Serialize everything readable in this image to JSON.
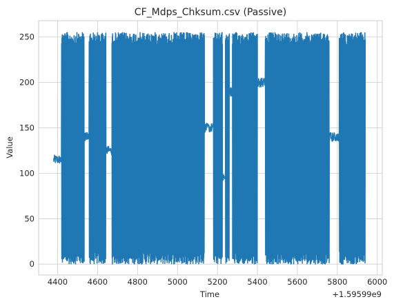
{
  "chart_data": {
    "type": "line",
    "title": "CF_Mdps_Chksum.csv (Passive)",
    "xlabel": "Time",
    "ylabel": "Value",
    "x_offset_label": "+1.59599e9",
    "xlim": [
      4305,
      6025
    ],
    "ylim": [
      -12,
      268
    ],
    "x_ticks": [
      4400,
      4600,
      4800,
      5000,
      5200,
      5400,
      5600,
      5800,
      6000
    ],
    "y_ticks": [
      0,
      50,
      100,
      150,
      200,
      250
    ],
    "grid": true,
    "series": [
      {
        "color": "#1f77b4",
        "segments": [
          {
            "x_start": 4380,
            "x_end": 4420,
            "pattern": "steady",
            "value": 115
          },
          {
            "x_start": 4420,
            "x_end": 4533,
            "pattern": "dense",
            "min": 0,
            "max": 255
          },
          {
            "x_start": 4533,
            "x_end": 4558,
            "pattern": "steady",
            "value": 140
          },
          {
            "x_start": 4558,
            "x_end": 4642,
            "pattern": "dense",
            "min": 0,
            "max": 255
          },
          {
            "x_start": 4642,
            "x_end": 4672,
            "pattern": "steady",
            "value": 125
          },
          {
            "x_start": 4672,
            "x_end": 5135,
            "pattern": "dense",
            "min": 0,
            "max": 255
          },
          {
            "x_start": 5135,
            "x_end": 5180,
            "pattern": "steady",
            "value": 150
          },
          {
            "x_start": 5180,
            "x_end": 5225,
            "pattern": "dense",
            "min": 0,
            "max": 255
          },
          {
            "x_start": 5225,
            "x_end": 5240,
            "pattern": "steady",
            "value": 95
          },
          {
            "x_start": 5240,
            "x_end": 5260,
            "pattern": "dense",
            "min": 0,
            "max": 255
          },
          {
            "x_start": 5260,
            "x_end": 5275,
            "pattern": "steady",
            "value": 190
          },
          {
            "x_start": 5275,
            "x_end": 5400,
            "pattern": "dense",
            "min": 0,
            "max": 255
          },
          {
            "x_start": 5400,
            "x_end": 5440,
            "pattern": "steady",
            "value": 200
          },
          {
            "x_start": 5440,
            "x_end": 5760,
            "pattern": "dense",
            "min": 0,
            "max": 255
          },
          {
            "x_start": 5760,
            "x_end": 5810,
            "pattern": "steady",
            "value": 140
          },
          {
            "x_start": 5810,
            "x_end": 5940,
            "pattern": "dense",
            "min": 0,
            "max": 255
          }
        ]
      }
    ]
  }
}
